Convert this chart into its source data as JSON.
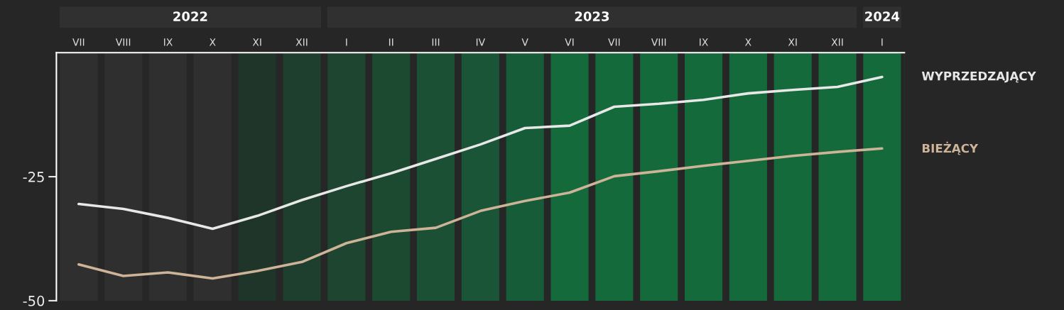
{
  "chart_data": {
    "type": "line",
    "categories": [
      "VII",
      "VIII",
      "IX",
      "X",
      "XI",
      "XII",
      "I",
      "II",
      "III",
      "IV",
      "V",
      "VI",
      "VII",
      "VIII",
      "IX",
      "X",
      "XI",
      "XII",
      "I"
    ],
    "series": [
      {
        "name": "WYPRZEDZAJĄCY",
        "color": "#e8e8e8",
        "values": [
          -30.5,
          -31.5,
          -33.3,
          -35.5,
          -32.9,
          -29.7,
          -26.9,
          -24.3,
          -21.4,
          -18.5,
          -15.2,
          -14.7,
          -10.9,
          -10.3,
          -9.5,
          -8.2,
          -7.5,
          -6.9,
          -4.9
        ]
      },
      {
        "name": "BIEŻĄCY",
        "color": "#cdb498",
        "values": [
          -42.7,
          -45.0,
          -44.3,
          -45.5,
          -44.0,
          -42.2,
          -38.4,
          -36.1,
          -35.3,
          -31.9,
          -29.9,
          -28.2,
          -24.9,
          -23.9,
          -22.8,
          -21.8,
          -20.8,
          -20.0,
          -19.3
        ]
      }
    ],
    "annotations": [
      "2022",
      "2023",
      "2024"
    ],
    "bands": [
      {
        "axis": "x",
        "from": "VII",
        "to": "VII",
        "color": "#2f2f2f"
      },
      {
        "axis": "x",
        "from": "VIII",
        "to": "VIII",
        "color": "#2f2f2f"
      },
      {
        "axis": "x",
        "from": "IX",
        "to": "IX",
        "color": "#2f2f2f"
      },
      {
        "axis": "x",
        "from": "X",
        "to": "X",
        "color": "#2f2f2f"
      },
      {
        "axis": "x",
        "from": "XI",
        "to": "XI",
        "color": "#1f352a"
      },
      {
        "axis": "x",
        "from": "XII",
        "to": "XII",
        "color": "#1e3f2d"
      },
      {
        "axis": "x",
        "from": "I",
        "to": "I",
        "color": "#1d4530"
      },
      {
        "axis": "x",
        "from": "II",
        "to": "II",
        "color": "#1c4a31"
      },
      {
        "axis": "x",
        "from": "III",
        "to": "III",
        "color": "#1b5034"
      },
      {
        "axis": "x",
        "from": "IV",
        "to": "IV",
        "color": "#195536"
      },
      {
        "axis": "x",
        "from": "V",
        "to": "V",
        "color": "#175c38"
      }
    ],
    "ylim": [
      -50,
      0
    ],
    "yticks": [
      -50,
      -25
    ],
    "grid": false,
    "legend": false,
    "marker": "none",
    "line_style": "solid"
  }
}
